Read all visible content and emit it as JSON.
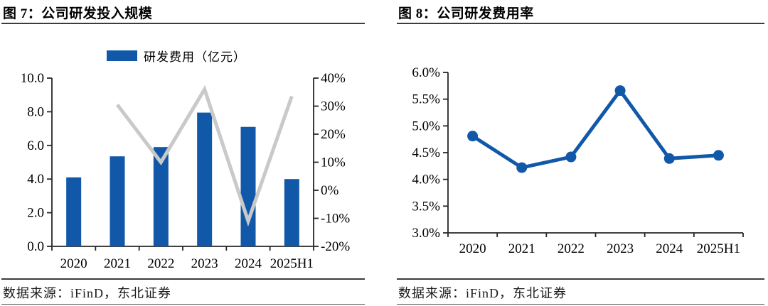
{
  "chart_data": [
    {
      "id": "rd-investment",
      "type": "bar",
      "title": "图 7：公司研发投入规模",
      "categories": [
        "2020",
        "2021",
        "2022",
        "2023",
        "2024",
        "2025H1"
      ],
      "series": [
        {
          "id": "rnd-expense-bars",
          "name": "研发费用（亿元）",
          "type": "bar",
          "axis": "left",
          "values": [
            4.1,
            5.35,
            5.9,
            7.95,
            7.1,
            4.0
          ],
          "color": "#1159A8",
          "in_legend": true
        },
        {
          "id": "yoy-growth-line",
          "name": "",
          "type": "line",
          "axis": "right",
          "values": [
            null,
            30.5,
            10,
            36,
            -11,
            33.5
          ],
          "color": "#C9C9C9",
          "in_legend": false
        }
      ],
      "left_axis": {
        "min": 0,
        "max": 10,
        "step": 2,
        "tick_labels": [
          "0.0",
          "2.0",
          "4.0",
          "6.0",
          "8.0",
          "10.0"
        ]
      },
      "right_axis": {
        "min": -20,
        "max": 40,
        "step": 10,
        "tick_labels": [
          "-20%",
          "-10%",
          "0%",
          "10%",
          "20%",
          "30%",
          "40%"
        ]
      },
      "legend_position": "top",
      "grid": false,
      "source": "数据来源：iFinD，东北证券"
    },
    {
      "id": "rd-expense-ratio",
      "type": "line",
      "title": "图 8：公司研发费用率",
      "categories": [
        "2020",
        "2021",
        "2022",
        "2023",
        "2024",
        "2025H1"
      ],
      "series": [
        {
          "id": "rnd-expense-ratio-line",
          "name": "",
          "type": "line",
          "axis": "left",
          "values": [
            4.81,
            4.22,
            4.42,
            5.66,
            4.39,
            4.45
          ],
          "color": "#1159A8",
          "in_legend": false
        }
      ],
      "left_axis": {
        "min": 3.0,
        "max": 6.0,
        "step": 0.5,
        "tick_labels": [
          "3.0%",
          "3.5%",
          "4.0%",
          "4.5%",
          "5.0%",
          "5.5%",
          "6.0%"
        ]
      },
      "legend_position": "none",
      "grid": false,
      "source": "数据来源：iFinD，东北证券"
    }
  ]
}
